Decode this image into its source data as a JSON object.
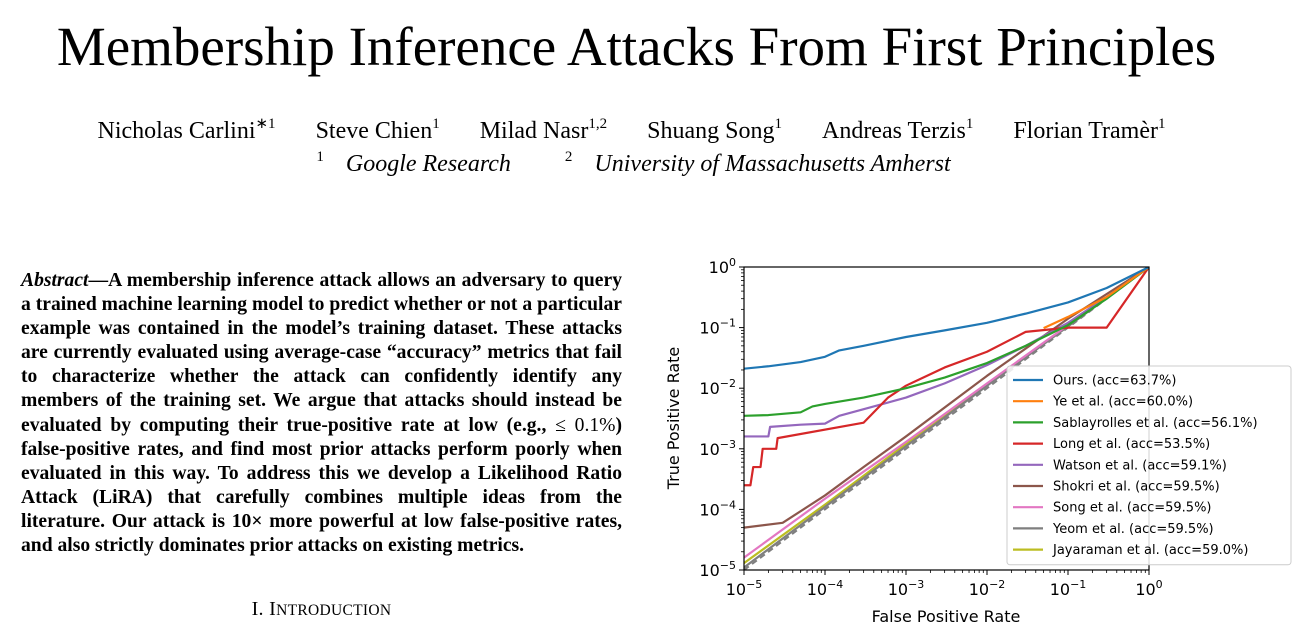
{
  "paper": {
    "title": "Membership Inference Attacks From First Principles",
    "authors": [
      {
        "name": "Nicholas Carlini",
        "sup": "∗1"
      },
      {
        "name": "Steve Chien",
        "sup": "1"
      },
      {
        "name": "Milad Nasr",
        "sup": "1,2"
      },
      {
        "name": "Shuang Song",
        "sup": "1"
      },
      {
        "name": "Andreas Terzis",
        "sup": "1"
      },
      {
        "name": "Florian Tramèr",
        "sup": "1"
      }
    ],
    "affiliations": [
      {
        "sup": "1",
        "name": "Google Research"
      },
      {
        "sup": "2",
        "name": "University of Massachusetts Amherst"
      }
    ],
    "abstract_lead": "Abstract",
    "abstract_part1": "—A membership inference attack allows an adversary to query a trained machine learning model to predict whether or not a particular example was contained in the model’s training dataset. These attacks are currently evaluated using average-case “accuracy” metrics that fail to characterize whether the attack can confidently identify any members of the training set. We argue that attacks should instead be evaluated by computing their true-positive rate at low (e.g., ",
    "abstract_math": "≤ 0.1%",
    "abstract_part2": ") false-positive rates, and find most prior attacks perform poorly when evaluated in this way. To address this we develop a Likelihood Ratio Attack (LiRA) that carefully combines multiple ideas from the literature. Our attack is 10× more powerful at low false-positive rates, and also strictly dominates prior attacks on existing metrics.",
    "section_number": "I.",
    "section_title_first": "I",
    "section_title_rest": "NTRODUCTION"
  },
  "chart_data": {
    "type": "line",
    "xlabel": "False Positive Rate",
    "ylabel": "True Positive Rate",
    "xscale": "log",
    "yscale": "log",
    "xlim": [
      1e-05,
      1
    ],
    "ylim": [
      1e-05,
      1
    ],
    "xticks": [
      1e-05,
      0.0001,
      0.001,
      0.01,
      0.1,
      1
    ],
    "yticks": [
      1e-05,
      0.0001,
      0.001,
      0.01,
      0.1,
      1
    ],
    "xtick_labels": [
      {
        "base": "10",
        "exp": "−5"
      },
      {
        "base": "10",
        "exp": "−4"
      },
      {
        "base": "10",
        "exp": "−3"
      },
      {
        "base": "10",
        "exp": "−2"
      },
      {
        "base": "10",
        "exp": "−1"
      },
      {
        "base": "10",
        "exp": "0"
      }
    ],
    "ytick_labels": [
      {
        "base": "10",
        "exp": "−5"
      },
      {
        "base": "10",
        "exp": "−4"
      },
      {
        "base": "10",
        "exp": "−3"
      },
      {
        "base": "10",
        "exp": "−2"
      },
      {
        "base": "10",
        "exp": "−1"
      },
      {
        "base": "10",
        "exp": "0"
      }
    ],
    "legend_position": "lower-right",
    "series": [
      {
        "name": "Ours.  (acc=63.7%)",
        "color": "#1f77b4",
        "x": [
          1e-05,
          2e-05,
          5e-05,
          0.0001,
          0.00015,
          0.0003,
          0.001,
          0.003,
          0.01,
          0.03,
          0.1,
          0.3,
          1
        ],
        "y": [
          0.021,
          0.023,
          0.027,
          0.033,
          0.042,
          0.05,
          0.07,
          0.09,
          0.12,
          0.17,
          0.26,
          0.45,
          1
        ]
      },
      {
        "name": "Ye et al.  (acc=60.0%)",
        "color": "#ff7f0e",
        "x": [
          0.05,
          0.1,
          0.3,
          1
        ],
        "y": [
          0.098,
          0.15,
          0.32,
          1
        ]
      },
      {
        "name": "Sablayrolles et al.  (acc=56.1%)",
        "color": "#2ca02c",
        "x": [
          1e-05,
          2e-05,
          5e-05,
          7e-05,
          0.0001,
          0.0003,
          0.001,
          0.003,
          0.01,
          0.03,
          0.1,
          0.3,
          1
        ],
        "y": [
          0.0035,
          0.0036,
          0.004,
          0.005,
          0.0055,
          0.007,
          0.01,
          0.015,
          0.026,
          0.05,
          0.11,
          0.3,
          1
        ]
      },
      {
        "name": "Long et al.  (acc=53.5%)",
        "color": "#d62728",
        "x": [
          1e-05,
          1.2e-05,
          1.3e-05,
          1.6e-05,
          1.7e-05,
          2.5e-05,
          2.6e-05,
          0.0003,
          0.0006,
          0.001,
          0.003,
          0.01,
          0.03,
          0.1,
          0.3,
          1
        ],
        "y": [
          0.00025,
          0.00025,
          0.0005,
          0.0005,
          0.001,
          0.001,
          0.0015,
          0.0027,
          0.007,
          0.011,
          0.022,
          0.04,
          0.085,
          0.1,
          0.1,
          1
        ]
      },
      {
        "name": "Watson et al. (acc=59.1%)",
        "color": "#9467bd",
        "x": [
          1e-05,
          2e-05,
          2.1e-05,
          5e-05,
          0.0001,
          0.00015,
          0.0003,
          0.001,
          0.003,
          0.01,
          0.03,
          0.1,
          0.3,
          1
        ],
        "y": [
          0.0016,
          0.0016,
          0.0023,
          0.0025,
          0.0026,
          0.0035,
          0.0045,
          0.007,
          0.012,
          0.024,
          0.05,
          0.12,
          0.32,
          1
        ]
      },
      {
        "name": "Shokri et al.  (acc=59.5%)",
        "color": "#8c564b",
        "x": [
          1e-05,
          3e-05,
          0.0001,
          0.0003,
          0.001,
          0.01,
          0.1,
          1
        ],
        "y": [
          5e-05,
          6e-05,
          0.00017,
          0.0005,
          0.0016,
          0.016,
          0.14,
          1
        ]
      },
      {
        "name": "Song et al.  (acc=59.5%)",
        "color": "#e377c2",
        "x": [
          1e-05,
          0.0001,
          0.001,
          0.01,
          0.1,
          1
        ],
        "y": [
          1.6e-05,
          0.00015,
          0.0013,
          0.012,
          0.11,
          1
        ]
      },
      {
        "name": "Yeom et al.  (acc=59.5%)",
        "color": "#7f7f7f",
        "x": [
          1e-05,
          0.0001,
          0.001,
          0.01,
          0.1,
          1
        ],
        "y": [
          1.1e-05,
          0.00011,
          0.0011,
          0.011,
          0.105,
          1
        ]
      },
      {
        "name": "Jayaraman et al.  (acc=59.0%)",
        "color": "#bcbd22",
        "x": [
          1e-05,
          0.0001,
          0.001,
          0.01,
          0.1,
          1
        ],
        "y": [
          1.3e-05,
          0.00012,
          0.0012,
          0.0115,
          0.108,
          1
        ]
      }
    ],
    "reference_line": {
      "style": "dashed",
      "color": "#7f7f7f",
      "x": [
        1e-05,
        1
      ],
      "y": [
        1e-05,
        1
      ]
    }
  }
}
